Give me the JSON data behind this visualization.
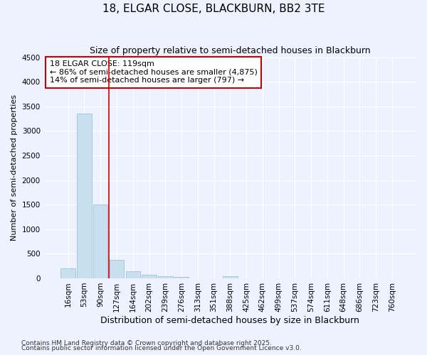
{
  "title1": "18, ELGAR CLOSE, BLACKBURN, BB2 3TE",
  "title2": "Size of property relative to semi-detached houses in Blackburn",
  "xlabel": "Distribution of semi-detached houses by size in Blackburn",
  "ylabel": "Number of semi-detached properties",
  "footer1": "Contains HM Land Registry data © Crown copyright and database right 2025.",
  "footer2": "Contains public sector information licensed under the Open Government Licence v3.0.",
  "annotation_line1": "18 ELGAR CLOSE: 119sqm",
  "annotation_line2": "← 86% of semi-detached houses are smaller (4,875)",
  "annotation_line3": "14% of semi-detached houses are larger (797) →",
  "bar_labels": [
    "16sqm",
    "53sqm",
    "90sqm",
    "127sqm",
    "164sqm",
    "202sqm",
    "239sqm",
    "276sqm",
    "313sqm",
    "351sqm",
    "388sqm",
    "425sqm",
    "462sqm",
    "499sqm",
    "537sqm",
    "574sqm",
    "611sqm",
    "648sqm",
    "686sqm",
    "723sqm",
    "760sqm"
  ],
  "bar_values": [
    200,
    3350,
    1500,
    380,
    150,
    70,
    40,
    30,
    0,
    0,
    40,
    0,
    0,
    0,
    0,
    0,
    0,
    0,
    0,
    0,
    0
  ],
  "bar_color": "#c8dff0",
  "bar_edge_color": "#a0c4e0",
  "red_line_x": 2.5,
  "ylim": [
    0,
    4500
  ],
  "yticks": [
    0,
    500,
    1000,
    1500,
    2000,
    2500,
    3000,
    3500,
    4000,
    4500
  ],
  "bg_color": "#eef2ff",
  "grid_color": "#ffffff",
  "annotation_box_color": "#ffffff",
  "annotation_box_edge": "#cc0000",
  "red_line_color": "#cc0000",
  "title1_fontsize": 11,
  "title2_fontsize": 9,
  "xlabel_fontsize": 9,
  "ylabel_fontsize": 8,
  "tick_fontsize": 7.5,
  "annotation_fontsize": 8,
  "footer_fontsize": 6.5
}
